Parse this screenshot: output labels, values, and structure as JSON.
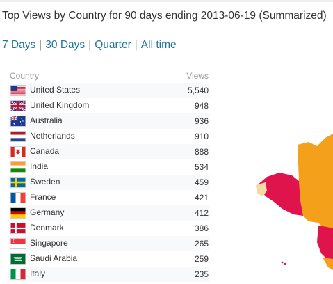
{
  "title": "Top Views by Country for 90 days ending 2013-06-19 (Summarized)",
  "periods": [
    {
      "label": "7 Days"
    },
    {
      "label": "30 Days"
    },
    {
      "label": "Quarter"
    },
    {
      "label": "All time"
    }
  ],
  "table": {
    "header_country": "Country",
    "header_views": "Views",
    "rows": [
      {
        "country": "United States",
        "views": "5,540",
        "flag": "us-flag-icon"
      },
      {
        "country": "United Kingdom",
        "views": "948",
        "flag": "uk-flag-icon"
      },
      {
        "country": "Australia",
        "views": "936",
        "flag": "australia-flag-icon"
      },
      {
        "country": "Netherlands",
        "views": "910",
        "flag": "netherlands-flag-icon"
      },
      {
        "country": "Canada",
        "views": "888",
        "flag": "canada-flag-icon"
      },
      {
        "country": "India",
        "views": "534",
        "flag": "india-flag-icon"
      },
      {
        "country": "Sweden",
        "views": "459",
        "flag": "sweden-flag-icon"
      },
      {
        "country": "France",
        "views": "421",
        "flag": "france-flag-icon"
      },
      {
        "country": "Germany",
        "views": "412",
        "flag": "germany-flag-icon"
      },
      {
        "country": "Denmark",
        "views": "386",
        "flag": "denmark-flag-icon"
      },
      {
        "country": "Singapore",
        "views": "265",
        "flag": "singapore-flag-icon"
      },
      {
        "country": "Saudi Arabia",
        "views": "259",
        "flag": "saudi-arabia-flag-icon"
      },
      {
        "country": "Italy",
        "views": "235",
        "flag": "italy-flag-icon"
      }
    ]
  },
  "colors": {
    "link": "#21759b",
    "map_high": "#e0144c",
    "map_mid": "#f5a01a",
    "map_low": "#f5d9a8"
  }
}
